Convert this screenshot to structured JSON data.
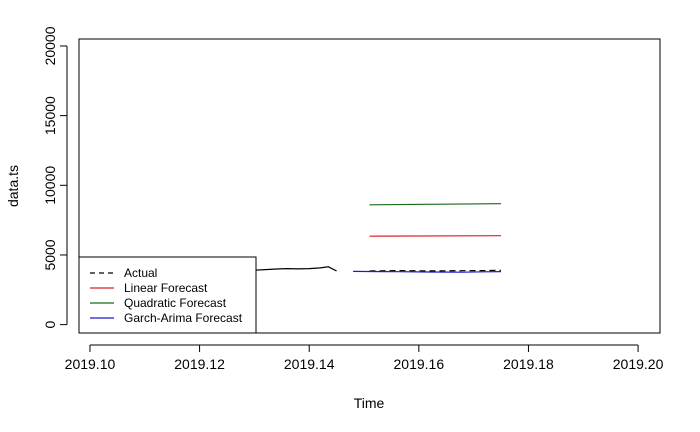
{
  "chart_data": {
    "type": "line",
    "title": "",
    "xlabel": "Time",
    "ylabel": "data.ts",
    "xlim": [
      2019.098,
      2019.204
    ],
    "ylim": [
      -600,
      20500
    ],
    "x_ticks": [
      2019.1,
      2019.12,
      2019.14,
      2019.16,
      2019.18,
      2019.2
    ],
    "x_tick_labels": [
      "2019.10",
      "2019.12",
      "2019.14",
      "2019.16",
      "2019.18",
      "2019.20"
    ],
    "y_ticks": [
      0,
      5000,
      10000,
      15000,
      20000
    ],
    "y_tick_labels": [
      "0",
      "5000",
      "10000",
      "15000",
      "20000"
    ],
    "grid": false,
    "legend_position": "bottom-left",
    "series": [
      {
        "name": "Actual",
        "style": "solid",
        "color": "#000000",
        "x": [
          2019.1288,
          2019.1296,
          2019.132,
          2019.1345,
          2019.136,
          2019.138,
          2019.14,
          2019.142,
          2019.1435,
          2019.145
        ],
        "y": [
          3700,
          3900,
          3950,
          4000,
          4020,
          4000,
          4020,
          4070,
          4150,
          3850
        ]
      },
      {
        "name": "",
        "style": "dashed",
        "color": "#000000",
        "x": [
          2019.151,
          2019.156,
          2019.162,
          2019.168,
          2019.172,
          2019.175
        ],
        "y": [
          3850,
          3880,
          3860,
          3870,
          3880,
          3900
        ]
      },
      {
        "name": "Linear Forecast",
        "style": "solid",
        "color": "#dd2222",
        "x": [
          2019.151,
          2019.175
        ],
        "y": [
          6350,
          6380
        ]
      },
      {
        "name": "Quadratic Forecast",
        "style": "solid",
        "color": "#1a6b1a",
        "x": [
          2019.151,
          2019.175
        ],
        "y": [
          8600,
          8680
        ]
      },
      {
        "name": "Garch-Arima Forecast",
        "style": "solid",
        "color": "#1a1acc",
        "x": [
          2019.148,
          2019.156,
          2019.162,
          2019.168,
          2019.172,
          2019.175
        ],
        "y": [
          3820,
          3800,
          3780,
          3760,
          3790,
          3810
        ]
      }
    ],
    "legend": [
      {
        "label": "Actual",
        "color": "#000000",
        "style": "dashed"
      },
      {
        "label": "Linear Forecast",
        "color": "#dd2222",
        "style": "solid"
      },
      {
        "label": "Quadratic Forecast",
        "color": "#1a6b1a",
        "style": "solid"
      },
      {
        "label": "Garch-Arima Forecast",
        "color": "#1a1acc",
        "style": "solid"
      }
    ]
  }
}
